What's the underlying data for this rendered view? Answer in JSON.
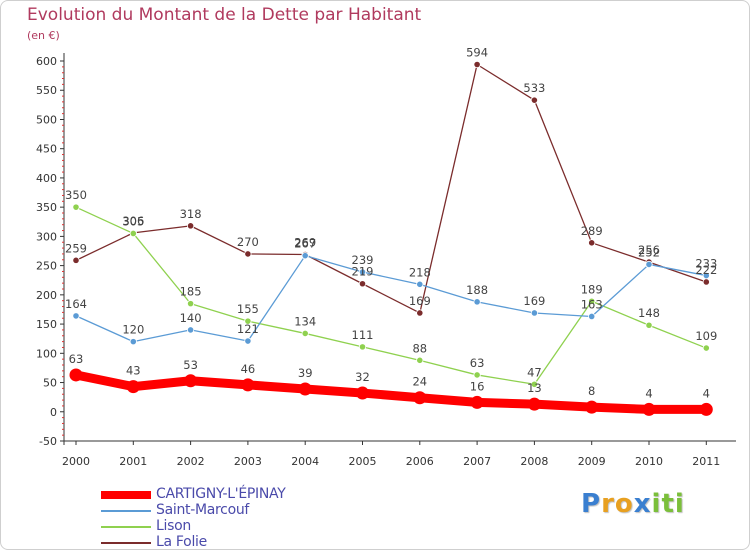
{
  "chart_data": {
    "type": "line",
    "title": "Evolution du Montant de la Dette par Habitant",
    "subtitle": "(en €)",
    "x": [
      "2000",
      "2001",
      "2002",
      "2003",
      "2004",
      "2005",
      "2006",
      "2007",
      "2008",
      "2009",
      "2010",
      "2011"
    ],
    "ylim": [
      -50,
      600
    ],
    "yticks": [
      -50,
      0,
      50,
      100,
      150,
      200,
      250,
      300,
      350,
      400,
      450,
      500,
      550,
      600
    ],
    "grid": false,
    "legend_position": "bottom-left",
    "series": [
      {
        "name": "CARTIGNY-L'ÉPINAY",
        "color": "#ff0000",
        "values": [
          63,
          43,
          53,
          46,
          39,
          32,
          24,
          16,
          13,
          8,
          4,
          4
        ]
      },
      {
        "name": "Saint-Marcouf",
        "color": "#5b9bd5",
        "values": [
          164,
          120,
          140,
          121,
          267,
          239,
          218,
          188,
          169,
          163,
          252,
          233
        ]
      },
      {
        "name": "Lison",
        "color": "#8fd14f",
        "values": [
          350,
          305,
          185,
          155,
          134,
          111,
          88,
          63,
          47,
          189,
          148,
          109
        ]
      },
      {
        "name": "La Folie",
        "color": "#7b2c2c",
        "values": [
          259,
          306,
          318,
          270,
          269,
          219,
          169,
          594,
          533,
          289,
          256,
          222
        ]
      }
    ]
  },
  "legend": {
    "items": [
      {
        "label": "CARTIGNY-L'ÉPINAY"
      },
      {
        "label": "Saint-Marcouf"
      },
      {
        "label": "Lison"
      },
      {
        "label": "La Folie"
      }
    ]
  },
  "logo": {
    "letters": [
      "P",
      "r",
      "o",
      "x",
      "i",
      "t",
      "i"
    ]
  }
}
